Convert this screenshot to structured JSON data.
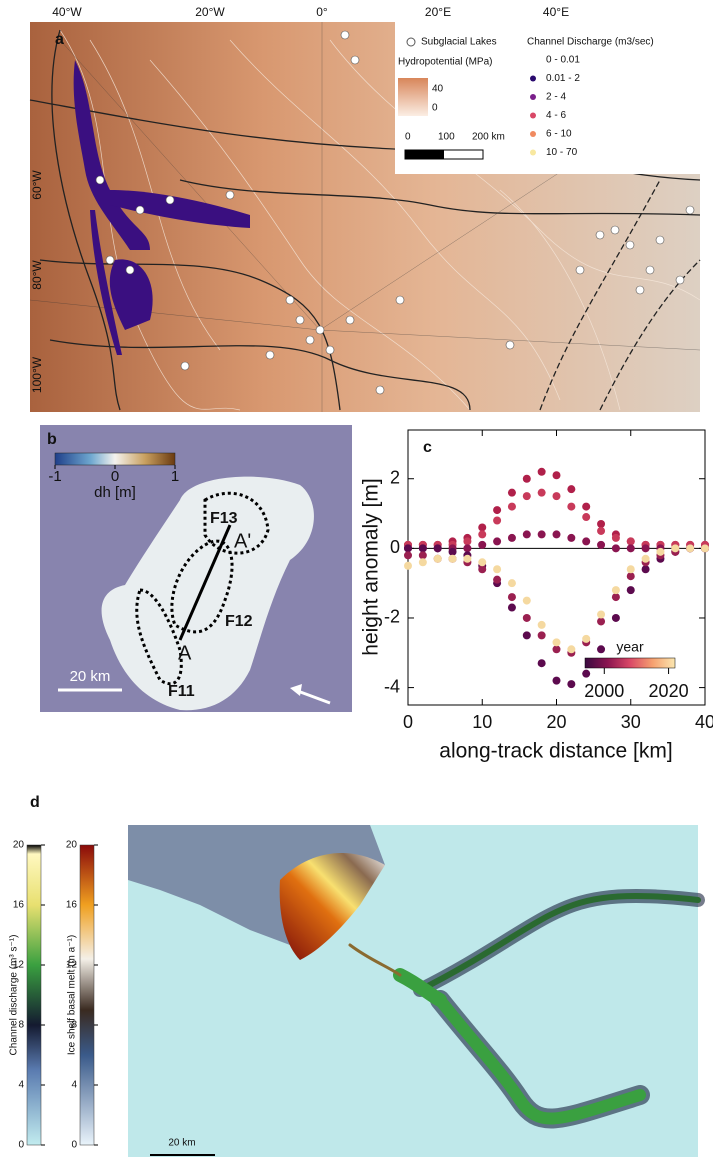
{
  "panel_a": {
    "label": "a",
    "lon_labels": [
      "40°W",
      "20°W",
      "0°",
      "20°E",
      "40°E"
    ],
    "lat_labels": [
      "60°W",
      "80°W",
      "100°W"
    ],
    "legend": {
      "lakes": "Subglacial Lakes",
      "discharge_title": "Channel Discharge (m3/sec)",
      "hydro_title": "Hydropotential (MPa)",
      "hydro_ticks": [
        40,
        0
      ],
      "scale": [
        0,
        100,
        "200 km"
      ],
      "discharge_classes": [
        {
          "label": "0 - 0.01",
          "color": "#ffffff"
        },
        {
          "label": "0.01 - 2",
          "color": "#2a0a6e"
        },
        {
          "label": "2 - 4",
          "color": "#7a1f8a"
        },
        {
          "label": "4 - 6",
          "color": "#d94867"
        },
        {
          "label": "6 - 10",
          "color": "#f08a60"
        },
        {
          "label": "10 - 70",
          "color": "#f8e8a0"
        }
      ]
    }
  },
  "panel_b": {
    "label": "b",
    "colorbar": {
      "title": "dh [m]",
      "ticks": [
        -1,
        0,
        1
      ],
      "range": [
        -1,
        1
      ]
    },
    "features": [
      "F13",
      "F12",
      "F11"
    ],
    "points": [
      "A",
      "A'"
    ],
    "scale": "20 km"
  },
  "chart_data": {
    "label": "c",
    "type": "scatter",
    "xlabel": "along-track distance [km]",
    "ylabel": "height anomaly [m]",
    "x": [
      0,
      2,
      4,
      6,
      8,
      10,
      12,
      14,
      16,
      18,
      20,
      22,
      24,
      26,
      28,
      30,
      32,
      34,
      36,
      38,
      40
    ],
    "series": [
      {
        "color": "#b0204a",
        "values": [
          0.1,
          0.1,
          0.1,
          0.2,
          0.3,
          0.6,
          1.1,
          1.6,
          2.0,
          2.2,
          2.1,
          1.7,
          1.2,
          0.7,
          0.4,
          0.2,
          0.1,
          0.1,
          0.1,
          0.1,
          0.1
        ]
      },
      {
        "color": "#c83a5a",
        "values": [
          0.1,
          0.1,
          0.1,
          0.1,
          0.2,
          0.4,
          0.8,
          1.2,
          1.5,
          1.6,
          1.5,
          1.2,
          0.9,
          0.5,
          0.3,
          0.2,
          0.1,
          0.1,
          0.1,
          0.1,
          0.1
        ]
      },
      {
        "color": "#8a1550",
        "values": [
          0,
          0,
          0,
          0,
          0,
          0.1,
          0.2,
          0.3,
          0.4,
          0.4,
          0.4,
          0.3,
          0.2,
          0.1,
          0,
          0,
          0,
          0,
          0,
          0,
          0
        ]
      },
      {
        "color": "#5c0a4e",
        "values": [
          0,
          0,
          0,
          -0.1,
          -0.2,
          -0.5,
          -1.0,
          -1.7,
          -2.5,
          -3.3,
          -3.8,
          -3.9,
          -3.6,
          -2.9,
          -2.0,
          -1.2,
          -0.6,
          -0.3,
          -0.1,
          0,
          0
        ]
      },
      {
        "color": "#9a2050",
        "values": [
          -0.2,
          -0.2,
          -0.3,
          -0.3,
          -0.4,
          -0.6,
          -0.9,
          -1.4,
          -2.0,
          -2.5,
          -2.9,
          -3.0,
          -2.7,
          -2.1,
          -1.4,
          -0.8,
          -0.4,
          -0.2,
          -0.1,
          0,
          0
        ]
      },
      {
        "color": "#f5d9a0",
        "values": [
          -0.5,
          -0.4,
          -0.3,
          -0.3,
          -0.3,
          -0.4,
          -0.6,
          -1.0,
          -1.5,
          -2.2,
          -2.7,
          -2.9,
          -2.6,
          -1.9,
          -1.2,
          -0.6,
          -0.3,
          -0.1,
          0,
          0,
          0
        ]
      }
    ],
    "xlim": [
      0,
      40
    ],
    "ylim": [
      -4.5,
      3.4
    ],
    "xticks": [
      0,
      10,
      20,
      30,
      40
    ],
    "yticks": [
      -4,
      -2,
      0,
      2
    ],
    "colorbar": {
      "title": "year",
      "ticks": [
        2000,
        2020
      ],
      "range": [
        1994,
        2022
      ],
      "colors": [
        "#3a0a40",
        "#8a1550",
        "#d94867",
        "#f5a070",
        "#fbe7b0"
      ]
    }
  },
  "panel_d": {
    "label": "d",
    "discharge_bar": {
      "title": "Channel discharge (m³ s⁻¹)",
      "ticks": [
        0,
        4,
        8,
        12,
        16,
        20
      ],
      "range": [
        0,
        20
      ]
    },
    "melt_bar": {
      "title": "Ice shelf basal melt (m a⁻¹)",
      "ticks": [
        0,
        4,
        8,
        12,
        16,
        20
      ],
      "range": [
        0,
        20
      ]
    },
    "scale": "20 km"
  }
}
